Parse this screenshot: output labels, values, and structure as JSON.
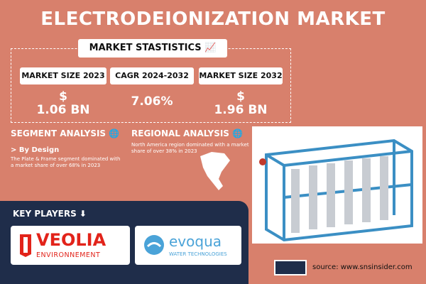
{
  "header": {
    "title": "ELECTRODEIONIZATION MARKET",
    "subtitle": "MARKET STASTISTICS"
  },
  "stats": [
    {
      "label": "MARKET SIZE 2023",
      "currency": "$",
      "value": "1.06 BN"
    },
    {
      "label": "CAGR 2024-2032",
      "value": "7.06%"
    },
    {
      "label": "MARKET SIZE 2032",
      "currency": "$",
      "value": "1.96 BN"
    }
  ],
  "segment": {
    "title": "SEGMENT ANALYSIS",
    "subtitle": "> By Design",
    "text": "The Plate & Frame segment dominated with a market share of over 68% in 2023"
  },
  "regional": {
    "title": "REGIONAL ANALYSIS",
    "text": "North America region dominated with a market share of over 38% in 2023"
  },
  "players": {
    "title": "KEY PLAYERS",
    "logos": [
      {
        "name": "VEOLIA",
        "tagline": "ENVIRONNEMENT"
      },
      {
        "name": "evoqua",
        "tagline": "WATER TECHNOLOGIES"
      }
    ]
  },
  "footer": {
    "source": "source: www.snsinsider.com"
  }
}
